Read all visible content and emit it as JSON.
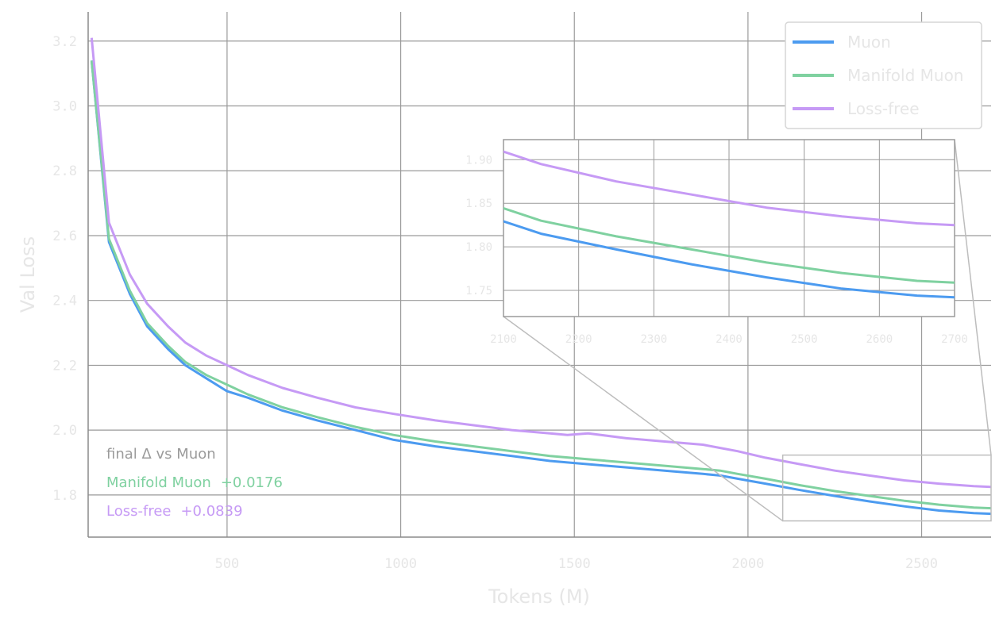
{
  "chart_data": {
    "type": "line",
    "xlabel": "Tokens (M)",
    "ylabel": "Val Loss",
    "xlim": [
      100,
      2700
    ],
    "ylim": [
      1.67,
      3.29
    ],
    "x_ticks": [
      500,
      1000,
      1500,
      2000,
      2500
    ],
    "y_ticks": [
      1.8,
      2.0,
      2.2,
      2.4,
      2.6,
      2.8,
      3.0,
      3.2
    ],
    "grid": true,
    "legend": {
      "placement": "top-right",
      "entries": [
        "Muon",
        "Manifold Muon",
        "Loss-free"
      ]
    },
    "series": [
      {
        "name": "Muon",
        "color": "#4c9bf0",
        "x": [
          110,
          160,
          220,
          270,
          330,
          380,
          440,
          500,
          560,
          660,
          760,
          870,
          980,
          1100,
          1210,
          1320,
          1430,
          1540,
          1650,
          1760,
          1870,
          1920,
          1970,
          2050,
          2150,
          2250,
          2350,
          2450,
          2550,
          2650,
          2700
        ],
        "y": [
          3.14,
          2.58,
          2.42,
          2.32,
          2.25,
          2.2,
          2.16,
          2.12,
          2.1,
          2.06,
          2.03,
          2.0,
          1.97,
          1.95,
          1.935,
          1.92,
          1.905,
          1.895,
          1.885,
          1.875,
          1.865,
          1.86,
          1.85,
          1.835,
          1.815,
          1.797,
          1.78,
          1.765,
          1.752,
          1.744,
          1.742
        ]
      },
      {
        "name": "Manifold Muon",
        "color": "#7fd1a0",
        "x": [
          110,
          160,
          220,
          270,
          330,
          380,
          440,
          500,
          560,
          660,
          760,
          870,
          980,
          1100,
          1210,
          1320,
          1430,
          1540,
          1650,
          1760,
          1870,
          1920,
          1970,
          2050,
          2150,
          2250,
          2350,
          2450,
          2550,
          2650,
          2700
        ],
        "y": [
          3.14,
          2.59,
          2.43,
          2.33,
          2.26,
          2.21,
          2.17,
          2.14,
          2.11,
          2.07,
          2.04,
          2.01,
          1.985,
          1.965,
          1.95,
          1.935,
          1.92,
          1.91,
          1.9,
          1.89,
          1.88,
          1.875,
          1.865,
          1.85,
          1.83,
          1.812,
          1.797,
          1.782,
          1.77,
          1.761,
          1.759
        ]
      },
      {
        "name": "Loss-free",
        "color": "#c69af5",
        "x": [
          110,
          160,
          220,
          270,
          330,
          380,
          440,
          500,
          560,
          660,
          760,
          870,
          980,
          1100,
          1210,
          1320,
          1430,
          1480,
          1540,
          1650,
          1760,
          1870,
          1920,
          1970,
          2050,
          2150,
          2250,
          2350,
          2450,
          2550,
          2650,
          2700
        ],
        "y": [
          3.21,
          2.64,
          2.48,
          2.39,
          2.32,
          2.27,
          2.23,
          2.2,
          2.17,
          2.13,
          2.1,
          2.07,
          2.05,
          2.03,
          2.015,
          2.0,
          1.99,
          1.985,
          1.99,
          1.975,
          1.965,
          1.955,
          1.945,
          1.935,
          1.915,
          1.895,
          1.875,
          1.86,
          1.845,
          1.835,
          1.827,
          1.825
        ]
      }
    ],
    "inset": {
      "xlim": [
        2100,
        2700
      ],
      "ylim": [
        1.72,
        1.923
      ],
      "x_ticks": [
        2100,
        2200,
        2300,
        2400,
        2500,
        2600,
        2700
      ],
      "y_ticks": [
        1.75,
        1.8,
        1.85,
        1.9
      ],
      "y_tick_labels": [
        "1.75",
        "1.80",
        "1.85",
        "1.90"
      ]
    },
    "annotations": {
      "title": "final Δ vs Muon",
      "rows": [
        {
          "label": "Manifold Muon",
          "value": "+0.0176",
          "color": "#7fd1a0"
        },
        {
          "label": "Loss-free",
          "value": "+0.0839",
          "color": "#c69af5"
        }
      ]
    }
  }
}
